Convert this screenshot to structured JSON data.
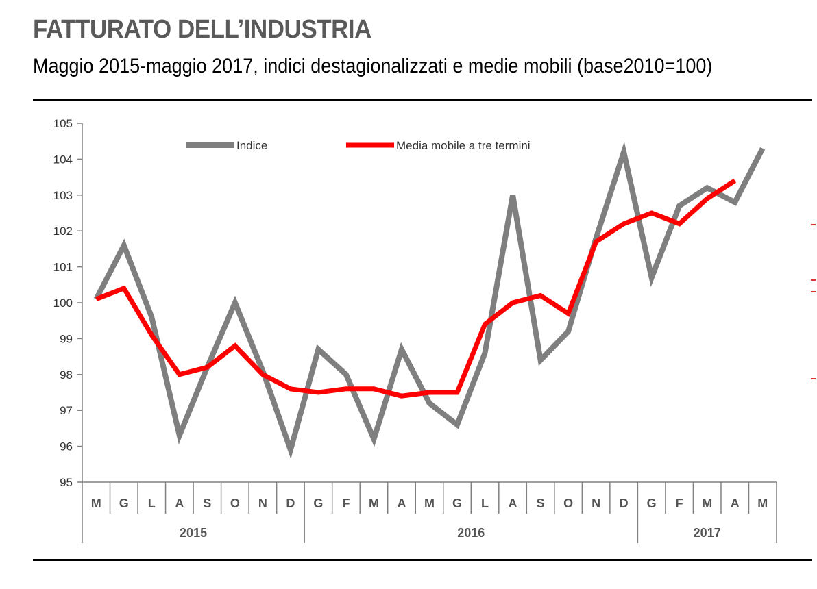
{
  "header": {
    "title": "FATTURATO DELL’INDUSTRIA",
    "subtitle": "Maggio 2015-maggio 2017, indici destagionalizzati e medie mobili (base2010=100)"
  },
  "chart_data": {
    "type": "line",
    "categories": [
      "M",
      "G",
      "L",
      "A",
      "S",
      "O",
      "N",
      "D",
      "G",
      "F",
      "M",
      "A",
      "M",
      "G",
      "L",
      "A",
      "S",
      "O",
      "N",
      "D",
      "G",
      "F",
      "M",
      "A",
      "M"
    ],
    "years": [
      {
        "label": "2015",
        "start": 0,
        "end": 7
      },
      {
        "label": "2016",
        "start": 8,
        "end": 19
      },
      {
        "label": "2017",
        "start": 20,
        "end": 24
      }
    ],
    "ylim": [
      95,
      105
    ],
    "yticks": [
      95,
      96,
      97,
      98,
      99,
      100,
      101,
      102,
      103,
      104,
      105
    ],
    "grid": false,
    "legend_position": "top",
    "series": [
      {
        "name": "Indice",
        "color": "#7f7f7f",
        "values": [
          100.1,
          101.6,
          99.6,
          96.3,
          98.2,
          100.0,
          98.1,
          95.9,
          98.7,
          98.0,
          96.2,
          98.7,
          97.2,
          96.6,
          98.6,
          103.0,
          98.4,
          99.2,
          101.8,
          104.2,
          100.7,
          102.7,
          103.2,
          102.8,
          104.3
        ]
      },
      {
        "name": "Media mobile a tre termini",
        "color": "#ff0000",
        "values": [
          100.1,
          100.4,
          99.1,
          98.0,
          98.2,
          98.8,
          98.0,
          97.6,
          97.5,
          97.6,
          97.6,
          97.4,
          97.5,
          97.5,
          99.4,
          100.0,
          100.2,
          99.7,
          101.7,
          102.2,
          102.5,
          102.2,
          102.9,
          103.4,
          null
        ]
      }
    ]
  }
}
